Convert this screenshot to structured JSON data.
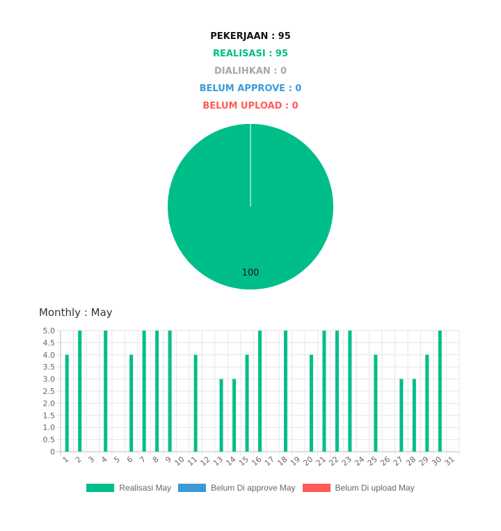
{
  "summary": {
    "pekerjaan": "PEKERJAAN : 95",
    "realisasi": "REALISASI : 95",
    "dialihkan": "DIALIHKAN : 0",
    "belum_approve": "BELUM APPROVE : 0",
    "belum_upload": "BELUM UPLOAD : 0"
  },
  "colors": {
    "black": "#111111",
    "green": "#00be89",
    "gray": "#a8a8a8",
    "blue": "#3a9ad9",
    "red": "#ff5a5a"
  },
  "monthly": {
    "title": "Monthly : May"
  },
  "chart_data": [
    {
      "type": "pie",
      "categories": [
        "Realisasi"
      ],
      "values": [
        100
      ],
      "data_labels": [
        "100"
      ],
      "colors": [
        "#00be89"
      ]
    },
    {
      "type": "bar",
      "categories": [
        "1",
        "2",
        "3",
        "4",
        "5",
        "6",
        "7",
        "8",
        "9",
        "10",
        "11",
        "12",
        "13",
        "14",
        "15",
        "16",
        "17",
        "18",
        "19",
        "20",
        "21",
        "22",
        "23",
        "24",
        "25",
        "26",
        "27",
        "28",
        "29",
        "30",
        "31"
      ],
      "series": [
        {
          "name": "Realisasi May",
          "color": "#00be89",
          "values": [
            4,
            5,
            0,
            5,
            0,
            4,
            5,
            5,
            5,
            0,
            4,
            0,
            3,
            3,
            4,
            5,
            0,
            5,
            0,
            4,
            5,
            5,
            5,
            0,
            4,
            0,
            3,
            3,
            4,
            5,
            0
          ]
        },
        {
          "name": "Belum Di approve May",
          "color": "#3a9ad9",
          "values": [
            0,
            0,
            0,
            0,
            0,
            0,
            0,
            0,
            0,
            0,
            0,
            0,
            0,
            0,
            0,
            0,
            0,
            0,
            0,
            0,
            0,
            0,
            0,
            0,
            0,
            0,
            0,
            0,
            0,
            0,
            0
          ]
        },
        {
          "name": "Belum Di upload May",
          "color": "#ff5a5a",
          "values": [
            0,
            0,
            0,
            0,
            0,
            0,
            0,
            0,
            0,
            0,
            0,
            0,
            0,
            0,
            0,
            0,
            0,
            0,
            0,
            0,
            0,
            0,
            0,
            0,
            0,
            0,
            0,
            0,
            0,
            0,
            0
          ]
        }
      ],
      "y_ticks": [
        "0",
        "0.5",
        "1.0",
        "1.5",
        "2.0",
        "2.5",
        "3.0",
        "3.5",
        "4.0",
        "4.5",
        "5.0"
      ],
      "ylim": [
        0,
        5
      ],
      "grid": true,
      "legend": "bottom"
    }
  ]
}
